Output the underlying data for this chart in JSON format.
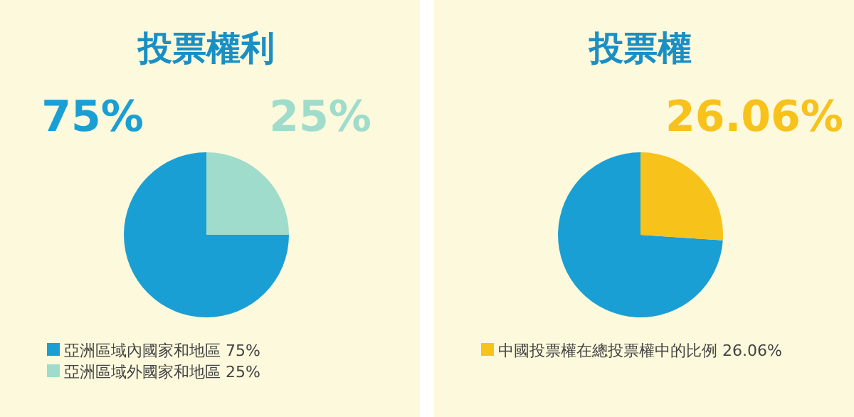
{
  "chart_data": [
    {
      "type": "pie",
      "title": "投票權利",
      "categories": [
        "亞洲區域內國家和地區",
        "亞洲區域外國家和地區"
      ],
      "values": [
        75,
        25
      ],
      "colors": [
        "#1a9fd4",
        "#9fdccb"
      ],
      "value_labels": [
        "75%",
        "25%"
      ],
      "legend": "bottom"
    },
    {
      "type": "pie",
      "title": "投票權",
      "categories": [
        null,
        "中國投票權在總投票權中的比例"
      ],
      "values": [
        73.94,
        26.06
      ],
      "colors": [
        "#1a9fd4",
        "#f7c21a"
      ],
      "value_labels": [
        null,
        "26.06%"
      ],
      "legend": "bottom"
    }
  ]
}
